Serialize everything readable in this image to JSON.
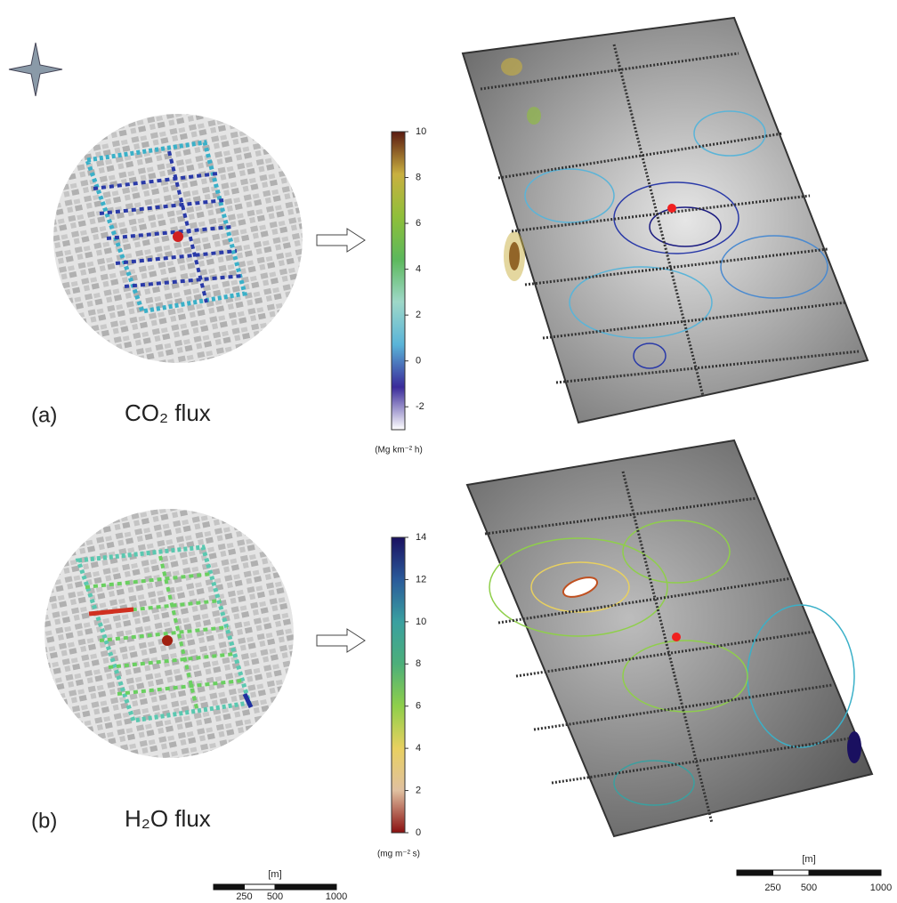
{
  "panels": [
    {
      "label": "(a)",
      "title": "CO₂ flux",
      "colorbar": {
        "lim": [
          -3,
          10
        ],
        "ticks": [
          -2,
          0,
          2,
          4,
          6,
          8,
          10
        ],
        "unit": "(Mg km⁻² h)",
        "colors": [
          "#ffffff",
          "#3a2a9a",
          "#5ab4d8",
          "#9ed8c8",
          "#5cb85c",
          "#8fbf3a",
          "#c9b040",
          "#5a1a10"
        ]
      }
    },
    {
      "label": "(b)",
      "title": "H₂O flux",
      "colorbar": {
        "lim": [
          0,
          14
        ],
        "ticks": [
          0,
          2,
          4,
          6,
          8,
          10,
          12,
          14
        ],
        "unit": "(mg m⁻² s)",
        "colors": [
          "#8a1010",
          "#e0c0a0",
          "#e8d060",
          "#8fcf4a",
          "#4caf7a",
          "#3aa0a0",
          "#2a5a9a",
          "#1a1060"
        ]
      }
    }
  ],
  "scale_bars": [
    {
      "unit": "[m]",
      "lim": [
        0,
        1000
      ],
      "ticks": [
        250,
        500,
        1000
      ]
    },
    {
      "unit": "[m]",
      "lim": [
        0,
        1000
      ],
      "ticks": [
        250,
        500,
        1000
      ]
    }
  ]
}
